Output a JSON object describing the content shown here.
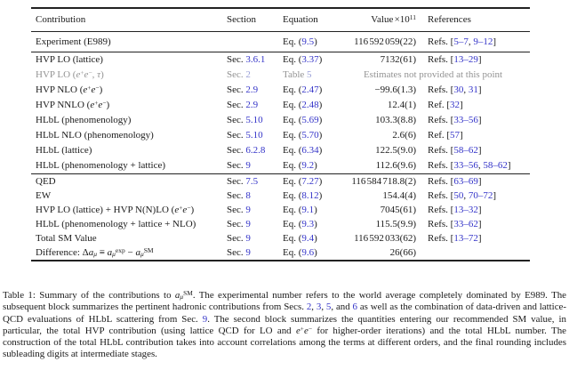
{
  "colors": {
    "link": "#3434c8",
    "gray": "#939393",
    "gray_link": "#9aa0d8",
    "text": "#1a1a1a",
    "rule": "#222222"
  },
  "table": {
    "header": {
      "contribution": [
        {
          "t": "Contribution"
        }
      ],
      "section": [
        {
          "t": "Section"
        }
      ],
      "equation": [
        {
          "t": "Equation"
        }
      ],
      "value": [
        {
          "t": "Value ×10"
        },
        {
          "t": "11",
          "c": "sup"
        }
      ],
      "references": [
        {
          "t": "References"
        }
      ]
    },
    "blocks": [
      [
        {
          "c": [
            {
              "t": "Experiment (E989)"
            }
          ],
          "s": [],
          "e": [
            {
              "t": "Eq. ("
            },
            {
              "t": "9.5",
              "c": "L"
            },
            {
              "t": ")"
            }
          ],
          "v": [
            {
              "t": "116 592 059(22)"
            }
          ],
          "r": [
            {
              "t": "Refs. ["
            },
            {
              "t": "5–7",
              "c": "L"
            },
            {
              "t": ", "
            },
            {
              "t": "9–12",
              "c": "L"
            },
            {
              "t": "]"
            }
          ]
        }
      ],
      [
        {
          "c": [
            {
              "t": "HVP LO (lattice)"
            }
          ],
          "s": [
            {
              "t": "Sec. "
            },
            {
              "t": "3.6.1",
              "c": "L"
            }
          ],
          "e": [
            {
              "t": "Eq. ("
            },
            {
              "t": "3.37",
              "c": "L"
            },
            {
              "t": ")"
            }
          ],
          "v": [
            {
              "t": "7132(61)"
            }
          ],
          "r": [
            {
              "t": "Refs. ["
            },
            {
              "t": "13–29",
              "c": "L"
            },
            {
              "t": "]"
            }
          ]
        },
        {
          "c": [
            {
              "t": "HVP LO (",
              "c": "G"
            },
            {
              "t": "e",
              "c": "G I"
            },
            {
              "t": "+",
              "c": "G sup"
            },
            {
              "t": "e",
              "c": "G I"
            },
            {
              "t": "−",
              "c": "G sup"
            },
            {
              "t": ", ",
              "c": "G"
            },
            {
              "t": "τ",
              "c": "G I"
            },
            {
              "t": ")",
              "c": "G"
            }
          ],
          "s": [
            {
              "t": "Sec. ",
              "c": "G"
            },
            {
              "t": "2",
              "c": "GL"
            }
          ],
          "e": [
            {
              "t": "Table ",
              "c": "G"
            },
            {
              "t": "5",
              "c": "GL"
            }
          ],
          "span": true,
          "v": [
            {
              "t": "Estimates not provided at this point",
              "c": "G"
            }
          ]
        },
        {
          "c": [
            {
              "t": "HVP NLO ("
            },
            {
              "t": "e",
              "c": "I"
            },
            {
              "t": "+",
              "c": "sup"
            },
            {
              "t": "e",
              "c": "I"
            },
            {
              "t": "−",
              "c": "sup"
            },
            {
              "t": ")"
            }
          ],
          "s": [
            {
              "t": "Sec. "
            },
            {
              "t": "2.9",
              "c": "L"
            }
          ],
          "e": [
            {
              "t": "Eq. ("
            },
            {
              "t": "2.47",
              "c": "L"
            },
            {
              "t": ")"
            }
          ],
          "v": [
            {
              "t": "−99.6(1.3)"
            }
          ],
          "r": [
            {
              "t": "Refs. ["
            },
            {
              "t": "30",
              "c": "L"
            },
            {
              "t": ", "
            },
            {
              "t": "31",
              "c": "L"
            },
            {
              "t": "]"
            }
          ]
        },
        {
          "c": [
            {
              "t": "HVP NNLO ("
            },
            {
              "t": "e",
              "c": "I"
            },
            {
              "t": "+",
              "c": "sup"
            },
            {
              "t": "e",
              "c": "I"
            },
            {
              "t": "−",
              "c": "sup"
            },
            {
              "t": ")"
            }
          ],
          "s": [
            {
              "t": "Sec. "
            },
            {
              "t": "2.9",
              "c": "L"
            }
          ],
          "e": [
            {
              "t": "Eq. ("
            },
            {
              "t": "2.48",
              "c": "L"
            },
            {
              "t": ")"
            }
          ],
          "v": [
            {
              "t": "12.4(1)"
            }
          ],
          "r": [
            {
              "t": "Ref. ["
            },
            {
              "t": "32",
              "c": "L"
            },
            {
              "t": "]"
            }
          ]
        },
        {
          "c": [
            {
              "t": "HLbL (phenomenology)"
            }
          ],
          "s": [
            {
              "t": "Sec. "
            },
            {
              "t": "5.10",
              "c": "L"
            }
          ],
          "e": [
            {
              "t": "Eq. ("
            },
            {
              "t": "5.69",
              "c": "L"
            },
            {
              "t": ")"
            }
          ],
          "v": [
            {
              "t": "103.3(8.8)"
            }
          ],
          "r": [
            {
              "t": "Refs. ["
            },
            {
              "t": "33–56",
              "c": "L"
            },
            {
              "t": "]"
            }
          ]
        },
        {
          "c": [
            {
              "t": "HLbL NLO (phenomenology)"
            }
          ],
          "s": [
            {
              "t": "Sec. "
            },
            {
              "t": "5.10",
              "c": "L"
            }
          ],
          "e": [
            {
              "t": "Eq. ("
            },
            {
              "t": "5.70",
              "c": "L"
            },
            {
              "t": ")"
            }
          ],
          "v": [
            {
              "t": "2.6(6)"
            }
          ],
          "r": [
            {
              "t": "Ref. ["
            },
            {
              "t": "57",
              "c": "L"
            },
            {
              "t": "]"
            }
          ]
        },
        {
          "c": [
            {
              "t": "HLbL (lattice)"
            }
          ],
          "s": [
            {
              "t": "Sec. "
            },
            {
              "t": "6.2.8",
              "c": "L"
            }
          ],
          "e": [
            {
              "t": "Eq. ("
            },
            {
              "t": "6.34",
              "c": "L"
            },
            {
              "t": ")"
            }
          ],
          "v": [
            {
              "t": "122.5(9.0)"
            }
          ],
          "r": [
            {
              "t": "Refs. ["
            },
            {
              "t": "58–62",
              "c": "L"
            },
            {
              "t": "]"
            }
          ]
        },
        {
          "c": [
            {
              "t": "HLbL (phenomenology + lattice)"
            }
          ],
          "s": [
            {
              "t": "Sec. "
            },
            {
              "t": "9",
              "c": "L"
            }
          ],
          "e": [
            {
              "t": "Eq. ("
            },
            {
              "t": "9.2",
              "c": "L"
            },
            {
              "t": ")"
            }
          ],
          "v": [
            {
              "t": "112.6(9.6)"
            }
          ],
          "r": [
            {
              "t": "Refs. ["
            },
            {
              "t": "33–56",
              "c": "L"
            },
            {
              "t": ", "
            },
            {
              "t": "58–62",
              "c": "L"
            },
            {
              "t": "]"
            }
          ]
        }
      ],
      [
        {
          "c": [
            {
              "t": "QED"
            }
          ],
          "s": [
            {
              "t": "Sec. "
            },
            {
              "t": "7.5",
              "c": "L"
            }
          ],
          "e": [
            {
              "t": "Eq. ("
            },
            {
              "t": "7.27",
              "c": "L"
            },
            {
              "t": ")"
            }
          ],
          "v": [
            {
              "t": "116 584 718.8(2)"
            }
          ],
          "r": [
            {
              "t": "Refs. ["
            },
            {
              "t": "63–69",
              "c": "L"
            },
            {
              "t": "]"
            }
          ]
        },
        {
          "c": [
            {
              "t": "EW"
            }
          ],
          "s": [
            {
              "t": "Sec. "
            },
            {
              "t": "8",
              "c": "L"
            }
          ],
          "e": [
            {
              "t": "Eq. ("
            },
            {
              "t": "8.12",
              "c": "L"
            },
            {
              "t": ")"
            }
          ],
          "v": [
            {
              "t": "154.4(4)"
            }
          ],
          "r": [
            {
              "t": "Refs. ["
            },
            {
              "t": "50",
              "c": "L"
            },
            {
              "t": ", "
            },
            {
              "t": "70–72",
              "c": "L"
            },
            {
              "t": "]"
            }
          ]
        },
        {
          "c": [
            {
              "t": "HVP LO (lattice) + HVP N(N)LO ("
            },
            {
              "t": "e",
              "c": "I"
            },
            {
              "t": "+",
              "c": "sup"
            },
            {
              "t": "e",
              "c": "I"
            },
            {
              "t": "−",
              "c": "sup"
            },
            {
              "t": ")"
            }
          ],
          "s": [
            {
              "t": "Sec. "
            },
            {
              "t": "9",
              "c": "L"
            }
          ],
          "e": [
            {
              "t": "Eq. ("
            },
            {
              "t": "9.1",
              "c": "L"
            },
            {
              "t": ")"
            }
          ],
          "v": [
            {
              "t": "7045(61)"
            }
          ],
          "r": [
            {
              "t": "Refs. ["
            },
            {
              "t": "13–32",
              "c": "L"
            },
            {
              "t": "]"
            }
          ]
        },
        {
          "c": [
            {
              "t": "HLbL (phenomenology + lattice + NLO)"
            }
          ],
          "s": [
            {
              "t": "Sec. "
            },
            {
              "t": "9",
              "c": "L"
            }
          ],
          "e": [
            {
              "t": "Eq. ("
            },
            {
              "t": "9.3",
              "c": "L"
            },
            {
              "t": ")"
            }
          ],
          "v": [
            {
              "t": "115.5(9.9)"
            }
          ],
          "r": [
            {
              "t": "Refs. ["
            },
            {
              "t": "33–62",
              "c": "L"
            },
            {
              "t": "]"
            }
          ]
        },
        {
          "c": [
            {
              "t": "Total SM Value"
            }
          ],
          "s": [
            {
              "t": "Sec. "
            },
            {
              "t": "9",
              "c": "L"
            }
          ],
          "e": [
            {
              "t": "Eq. ("
            },
            {
              "t": "9.4",
              "c": "L"
            },
            {
              "t": ")"
            }
          ],
          "v": [
            {
              "t": "116 592 033(62)"
            }
          ],
          "r": [
            {
              "t": "Refs. ["
            },
            {
              "t": "13–72",
              "c": "L"
            },
            {
              "t": "]"
            }
          ]
        },
        {
          "c": [
            {
              "t": "Difference: Δ"
            },
            {
              "t": "a",
              "c": "I"
            },
            {
              "t": "μ",
              "c": "I sub"
            },
            {
              "t": " ≡ "
            },
            {
              "t": "a",
              "c": "I"
            },
            {
              "t": "μ",
              "c": "I sub"
            },
            {
              "t": "exp",
              "c": "sup"
            },
            {
              "t": " − "
            },
            {
              "t": "a",
              "c": "I"
            },
            {
              "t": "μ",
              "c": "I sub"
            },
            {
              "t": "SM",
              "c": "sup"
            }
          ],
          "s": [
            {
              "t": "Sec. "
            },
            {
              "t": "9",
              "c": "L"
            }
          ],
          "e": [
            {
              "t": "Eq. ("
            },
            {
              "t": "9.6",
              "c": "L"
            },
            {
              "t": ")"
            }
          ],
          "v": [
            {
              "t": "26(66)"
            }
          ],
          "r": []
        }
      ]
    ]
  },
  "caption": {
    "segments": [
      {
        "t": "Table 1: Summary of the contributions to "
      },
      {
        "t": "a",
        "c": "I"
      },
      {
        "t": "μ",
        "c": "I sub"
      },
      {
        "t": "SM",
        "c": "sup"
      },
      {
        "t": ". The experimental number refers to the world average completely dominated by E989. The subsequent block summarizes the pertinent hadronic contributions from Secs. "
      },
      {
        "t": "2",
        "c": "L"
      },
      {
        "t": ", "
      },
      {
        "t": "3",
        "c": "L"
      },
      {
        "t": ", "
      },
      {
        "t": "5",
        "c": "L"
      },
      {
        "t": ", and "
      },
      {
        "t": "6",
        "c": "L"
      },
      {
        "t": " as well as the combination of data-driven and lattice-QCD evaluations of HLbL scattering from Sec. "
      },
      {
        "t": "9",
        "c": "L"
      },
      {
        "t": ". The second block summarizes the quantities entering our recommended SM value, in particular, the total HVP contribution (using lattice QCD for LO and "
      },
      {
        "t": "e",
        "c": "I"
      },
      {
        "t": "+",
        "c": "sup"
      },
      {
        "t": "e",
        "c": "I"
      },
      {
        "t": "−",
        "c": "sup"
      },
      {
        "t": " for higher-order iterations) and the total HLbL number. The construction of the total HLbL contribution takes into account correlations among the terms at different orders, and the final rounding includes subleading digits at intermediate stages."
      }
    ]
  }
}
